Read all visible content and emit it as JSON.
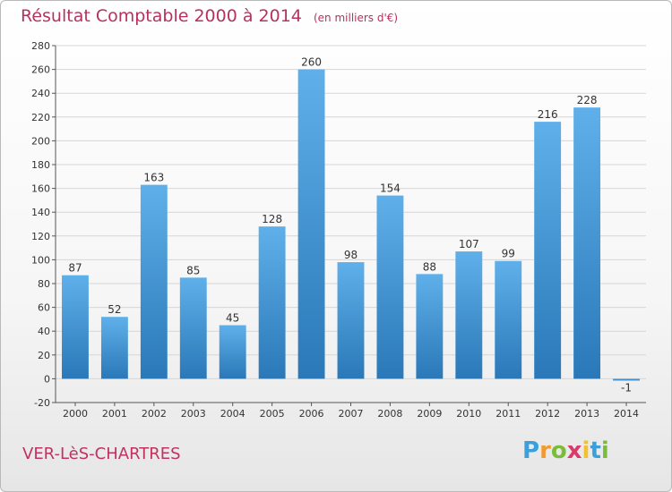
{
  "title": "Résultat Comptable 2000 à 2014",
  "subtitle": "(en milliers d'€)",
  "commune": "VER-LèS-CHARTRES",
  "logo": {
    "text": "Proxiti",
    "letters": [
      "P",
      "r",
      "o",
      "x",
      "i",
      "t",
      "i"
    ],
    "colors": [
      "#3aa0dc",
      "#f29a2e",
      "#7bbd3b",
      "#d93b6a",
      "#f2c12e",
      "#3aa0dc",
      "#7bbd3b"
    ]
  },
  "colors": {
    "bar_light": "#5fb0ea",
    "bar_dark": "#2a78b8",
    "title": "#b5325f",
    "grid": "#d6d6d6"
  },
  "chart_data": {
    "type": "bar",
    "categories": [
      "2000",
      "2001",
      "2002",
      "2003",
      "2004",
      "2005",
      "2006",
      "2007",
      "2008",
      "2009",
      "2010",
      "2011",
      "2012",
      "2013",
      "2014"
    ],
    "values": [
      87,
      52,
      163,
      85,
      45,
      128,
      260,
      98,
      154,
      88,
      107,
      99,
      216,
      228,
      -1
    ],
    "ylim": [
      -20,
      280
    ],
    "yticks": [
      -20,
      0,
      20,
      40,
      60,
      80,
      100,
      120,
      140,
      160,
      180,
      200,
      220,
      240,
      260,
      280
    ],
    "grid": true
  }
}
